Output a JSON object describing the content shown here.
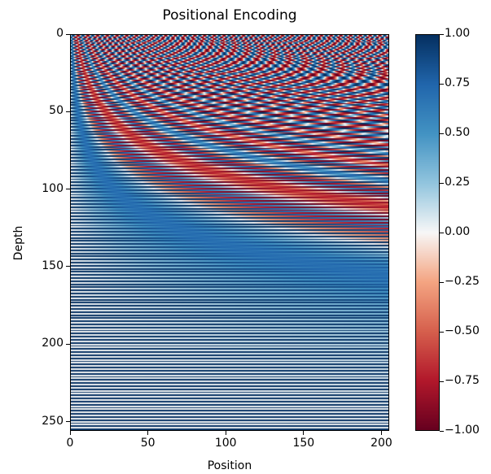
{
  "chart_data": {
    "type": "heatmap",
    "title": "Positional Encoding",
    "xlabel": "Position",
    "ylabel": "Depth",
    "x_range": [
      0,
      205
    ],
    "y_range": [
      0,
      256
    ],
    "y_inverted": true,
    "x_ticks": [
      "0",
      "50",
      "100",
      "150",
      "200"
    ],
    "y_ticks": [
      "0",
      "50",
      "100",
      "150",
      "200",
      "250"
    ],
    "colorbar": {
      "colormap": "RdBu",
      "low_color": "#67001f",
      "mid_color": "#f7f7f7",
      "high_color": "#053061",
      "range": [
        -1.0,
        1.0
      ],
      "ticks": [
        "1.00",
        "0.75",
        "0.50",
        "0.25",
        "0.00",
        "−0.25",
        "−0.50",
        "−0.75",
        "−1.00"
      ]
    }
  }
}
